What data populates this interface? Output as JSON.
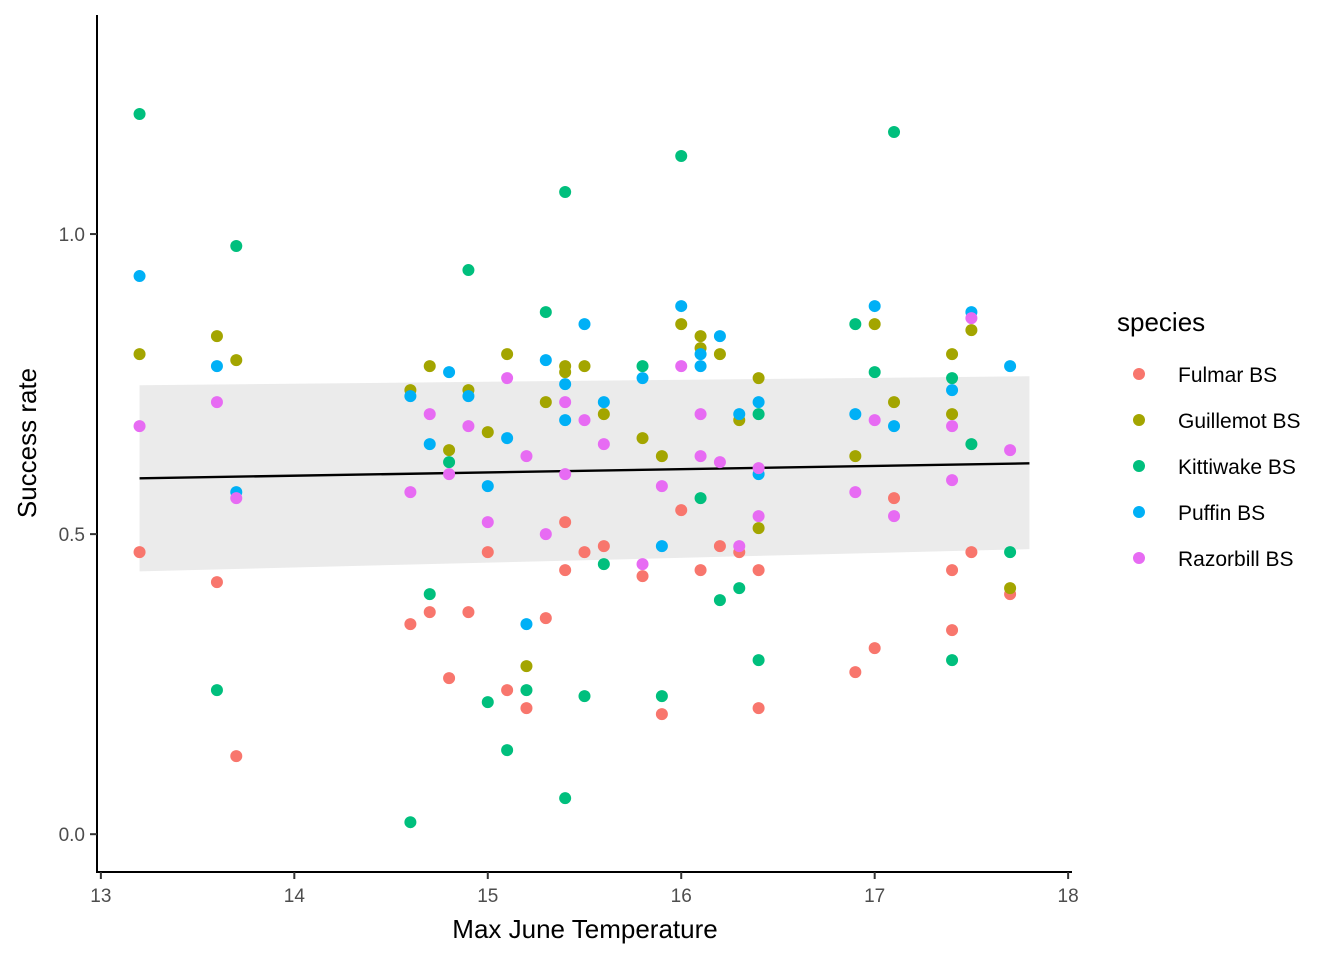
{
  "chart_data": {
    "type": "scatter",
    "title": "",
    "xlabel": "Max June Temperature",
    "ylabel": "Success rate",
    "xlim": [
      12.98,
      18.02
    ],
    "ylim": [
      -0.063,
      1.365
    ],
    "x_ticks": [
      13,
      14,
      15,
      16,
      17,
      18
    ],
    "x_tick_labels": [
      "13",
      "14",
      "15",
      "16",
      "17",
      "18"
    ],
    "y_ticks": [
      0.0,
      0.5,
      1.0
    ],
    "y_tick_labels": [
      "0.0",
      "0.5",
      "1.0"
    ],
    "grid": false,
    "legend": {
      "title": "species",
      "position": "right"
    },
    "trend": {
      "method": "linear fit with confidence band",
      "x": [
        13.2,
        17.8
      ],
      "y": [
        0.593,
        0.618
      ],
      "band_lower": [
        0.438,
        0.475
      ],
      "band_upper": [
        0.748,
        0.763
      ],
      "line_color": "#000000",
      "band_color": "#ebebeb"
    },
    "series": [
      {
        "name": "Fulmar BS",
        "color": "#F8766D",
        "points": [
          [
            13.2,
            0.47
          ],
          [
            13.6,
            0.42
          ],
          [
            13.7,
            0.13
          ],
          [
            14.6,
            0.35
          ],
          [
            14.7,
            0.37
          ],
          [
            14.8,
            0.26
          ],
          [
            14.9,
            0.37
          ],
          [
            15.0,
            0.47
          ],
          [
            15.1,
            0.24
          ],
          [
            15.2,
            0.21
          ],
          [
            15.3,
            0.36
          ],
          [
            15.4,
            0.52
          ],
          [
            15.4,
            0.44
          ],
          [
            15.5,
            0.47
          ],
          [
            15.6,
            0.48
          ],
          [
            15.8,
            0.43
          ],
          [
            15.9,
            0.2
          ],
          [
            16.0,
            0.54
          ],
          [
            16.1,
            0.44
          ],
          [
            16.2,
            0.48
          ],
          [
            16.3,
            0.47
          ],
          [
            16.4,
            0.44
          ],
          [
            16.4,
            0.21
          ],
          [
            16.9,
            0.27
          ],
          [
            17.0,
            0.31
          ],
          [
            17.1,
            0.56
          ],
          [
            17.4,
            0.44
          ],
          [
            17.4,
            0.34
          ],
          [
            17.5,
            0.47
          ],
          [
            17.7,
            0.4
          ]
        ]
      },
      {
        "name": "Guillemot BS",
        "color": "#A3A500",
        "points": [
          [
            13.2,
            0.8
          ],
          [
            13.6,
            0.83
          ],
          [
            13.7,
            0.79
          ],
          [
            14.6,
            0.74
          ],
          [
            14.7,
            0.78
          ],
          [
            14.8,
            0.64
          ],
          [
            14.9,
            0.74
          ],
          [
            15.0,
            0.67
          ],
          [
            15.1,
            0.8
          ],
          [
            15.2,
            0.28
          ],
          [
            15.3,
            0.72
          ],
          [
            15.4,
            0.78
          ],
          [
            15.4,
            0.77
          ],
          [
            15.5,
            0.78
          ],
          [
            15.6,
            0.7
          ],
          [
            15.8,
            0.66
          ],
          [
            15.9,
            0.63
          ],
          [
            16.0,
            0.85
          ],
          [
            16.1,
            0.83
          ],
          [
            16.1,
            0.81
          ],
          [
            16.2,
            0.8
          ],
          [
            16.3,
            0.69
          ],
          [
            16.4,
            0.76
          ],
          [
            16.4,
            0.51
          ],
          [
            16.9,
            0.63
          ],
          [
            17.0,
            0.85
          ],
          [
            17.1,
            0.72
          ],
          [
            17.4,
            0.8
          ],
          [
            17.4,
            0.7
          ],
          [
            17.5,
            0.84
          ],
          [
            17.7,
            0.41
          ]
        ]
      },
      {
        "name": "Kittiwake BS",
        "color": "#00BF7D",
        "points": [
          [
            13.2,
            1.2
          ],
          [
            13.6,
            0.24
          ],
          [
            13.7,
            0.98
          ],
          [
            14.6,
            0.02
          ],
          [
            14.7,
            0.4
          ],
          [
            14.8,
            0.62
          ],
          [
            14.9,
            0.94
          ],
          [
            15.0,
            0.22
          ],
          [
            15.1,
            0.14
          ],
          [
            15.2,
            0.24
          ],
          [
            15.3,
            0.87
          ],
          [
            15.4,
            1.07
          ],
          [
            15.4,
            0.06
          ],
          [
            15.5,
            0.23
          ],
          [
            15.6,
            0.45
          ],
          [
            15.8,
            0.78
          ],
          [
            15.9,
            0.23
          ],
          [
            16.0,
            1.13
          ],
          [
            16.1,
            0.56
          ],
          [
            16.2,
            0.39
          ],
          [
            16.3,
            0.41
          ],
          [
            16.4,
            0.7
          ],
          [
            16.4,
            0.29
          ],
          [
            16.9,
            0.85
          ],
          [
            17.0,
            0.77
          ],
          [
            17.1,
            1.17
          ],
          [
            17.4,
            0.76
          ],
          [
            17.4,
            0.29
          ],
          [
            17.5,
            0.65
          ],
          [
            17.7,
            0.47
          ]
        ]
      },
      {
        "name": "Puffin BS",
        "color": "#00B0F6",
        "points": [
          [
            13.2,
            0.93
          ],
          [
            13.6,
            0.78
          ],
          [
            13.7,
            0.57
          ],
          [
            14.6,
            0.73
          ],
          [
            14.7,
            0.65
          ],
          [
            14.8,
            0.77
          ],
          [
            14.9,
            0.73
          ],
          [
            15.0,
            0.58
          ],
          [
            15.1,
            0.66
          ],
          [
            15.2,
            0.35
          ],
          [
            15.3,
            0.79
          ],
          [
            15.4,
            0.75
          ],
          [
            15.4,
            0.69
          ],
          [
            15.5,
            0.85
          ],
          [
            15.6,
            0.72
          ],
          [
            15.8,
            0.76
          ],
          [
            15.9,
            0.48
          ],
          [
            16.0,
            0.88
          ],
          [
            16.1,
            0.8
          ],
          [
            16.1,
            0.78
          ],
          [
            16.2,
            0.83
          ],
          [
            16.3,
            0.7
          ],
          [
            16.4,
            0.72
          ],
          [
            16.4,
            0.6
          ],
          [
            16.9,
            0.7
          ],
          [
            17.0,
            0.88
          ],
          [
            17.1,
            0.68
          ],
          [
            17.4,
            0.74
          ],
          [
            17.5,
            0.87
          ],
          [
            17.7,
            0.78
          ]
        ]
      },
      {
        "name": "Razorbill BS",
        "color": "#E76BF3",
        "points": [
          [
            13.2,
            0.68
          ],
          [
            13.6,
            0.72
          ],
          [
            13.7,
            0.56
          ],
          [
            14.6,
            0.57
          ],
          [
            14.7,
            0.7
          ],
          [
            14.8,
            0.6
          ],
          [
            14.9,
            0.68
          ],
          [
            15.0,
            0.52
          ],
          [
            15.1,
            0.76
          ],
          [
            15.2,
            0.63
          ],
          [
            15.3,
            0.5
          ],
          [
            15.4,
            0.72
          ],
          [
            15.4,
            0.6
          ],
          [
            15.5,
            0.69
          ],
          [
            15.6,
            0.65
          ],
          [
            15.8,
            0.45
          ],
          [
            15.9,
            0.58
          ],
          [
            16.0,
            0.78
          ],
          [
            16.1,
            0.7
          ],
          [
            16.1,
            0.63
          ],
          [
            16.2,
            0.62
          ],
          [
            16.3,
            0.48
          ],
          [
            16.4,
            0.61
          ],
          [
            16.4,
            0.53
          ],
          [
            16.9,
            0.57
          ],
          [
            17.0,
            0.69
          ],
          [
            17.1,
            0.53
          ],
          [
            17.4,
            0.68
          ],
          [
            17.4,
            0.59
          ],
          [
            17.5,
            0.86
          ],
          [
            17.7,
            0.64
          ]
        ]
      }
    ]
  }
}
